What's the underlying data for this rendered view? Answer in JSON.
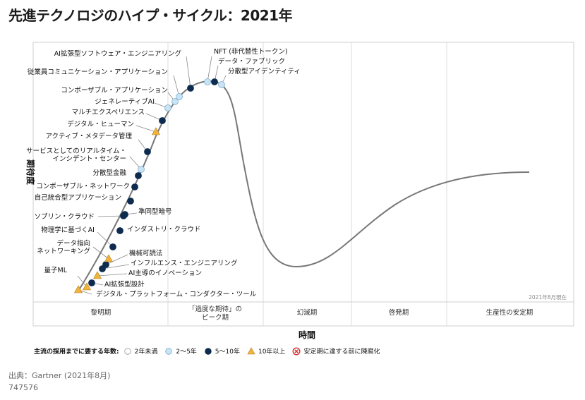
{
  "title": "先進テクノロジのハイプ・サイクル：2021年",
  "source": "出典：Gartner (2021年8月)",
  "doc_id": "747576",
  "legend": {
    "title": "主流の採用までに要する年数:",
    "items": [
      {
        "label": "2年未満",
        "symbol": "circle",
        "color": "#ffffff"
      },
      {
        "label": "2～5年",
        "symbol": "circle",
        "color": "#c9e3f3"
      },
      {
        "label": "5～10年",
        "symbol": "circle",
        "color": "#0d2b4e"
      },
      {
        "label": "10年以上",
        "symbol": "triangle",
        "color": "#f0b43c"
      },
      {
        "label": "安定期に達する前に陳腐化",
        "symbol": "x-circle",
        "color": "#d9302f"
      }
    ]
  },
  "chart_data": {
    "type": "scatter",
    "xlabel": "時間",
    "ylabel": "期待度",
    "date_note": "2021年8月現在",
    "phases": [
      "黎明期",
      "「過度な期待」の\nピーク期",
      "幻滅期",
      "啓発期",
      "生産性の安定期"
    ],
    "technologies": [
      {
        "name": "デジタル・プラットフォーム・コンダクター・ツール",
        "phase": "黎明期",
        "adoption": "10年以上"
      },
      {
        "name": "AI拡張型設計",
        "phase": "黎明期",
        "adoption": "5～10年"
      },
      {
        "name": "量子ML",
        "phase": "黎明期",
        "adoption": "10年以上"
      },
      {
        "name": "AI主導のイノベーション",
        "phase": "黎明期",
        "adoption": "10年以上"
      },
      {
        "name": "インフルエンス・エンジニアリング",
        "phase": "黎明期",
        "adoption": "5～10年"
      },
      {
        "name": "機械可読法",
        "phase": "黎明期",
        "adoption": "5～10年"
      },
      {
        "name": "データ指向ネットワーキング",
        "phase": "黎明期",
        "adoption": "10年以上"
      },
      {
        "name": "物理学に基づくAI",
        "phase": "黎明期",
        "adoption": "5～10年"
      },
      {
        "name": "インダストリ・クラウド",
        "phase": "黎明期",
        "adoption": "5～10年"
      },
      {
        "name": "ソブリン・クラウド",
        "phase": "黎明期",
        "adoption": "5～10年"
      },
      {
        "name": "準同型暗号",
        "phase": "黎明期",
        "adoption": "5～10年"
      },
      {
        "name": "自己統合型アプリケーション",
        "phase": "黎明期",
        "adoption": "5～10年"
      },
      {
        "name": "コンポーザブル・ネットワーク",
        "phase": "黎明期",
        "adoption": "5～10年"
      },
      {
        "name": "分散型金融",
        "phase": "黎明期",
        "adoption": "5～10年"
      },
      {
        "name": "サービスとしてのリアルタイム・インシデント・センター",
        "phase": "黎明期",
        "adoption": "2～5年"
      },
      {
        "name": "アクティブ・メタデータ管理",
        "phase": "黎明期",
        "adoption": "5～10年"
      },
      {
        "name": "デジタル・ヒューマン",
        "phase": "黎明期",
        "adoption": "10年以上"
      },
      {
        "name": "マルチエクスペリエンス",
        "phase": "黎明期",
        "adoption": "5～10年"
      },
      {
        "name": "ジェネレーティブAI",
        "phase": "黎明期",
        "adoption": "2～5年"
      },
      {
        "name": "コンポーザブル・アプリケーション",
        "phase": "黎明期",
        "adoption": "2～5年"
      },
      {
        "name": "従業員コミュニケーション・アプリケーション",
        "phase": "黎明期",
        "adoption": "2～5年"
      },
      {
        "name": "AI拡張型ソフトウェア・エンジニアリング",
        "phase": "「過度な期待」のピーク期",
        "adoption": "5～10年"
      },
      {
        "name": "NFT (非代替性トークン)",
        "phase": "「過度な期待」のピーク期",
        "adoption": "2～5年"
      },
      {
        "name": "データ・ファブリック",
        "phase": "「過度な期待」のピーク期",
        "adoption": "5～10年"
      },
      {
        "name": "分散型アイデンティティ",
        "phase": "「過度な期待」のピーク期",
        "adoption": "2～5年"
      }
    ]
  }
}
